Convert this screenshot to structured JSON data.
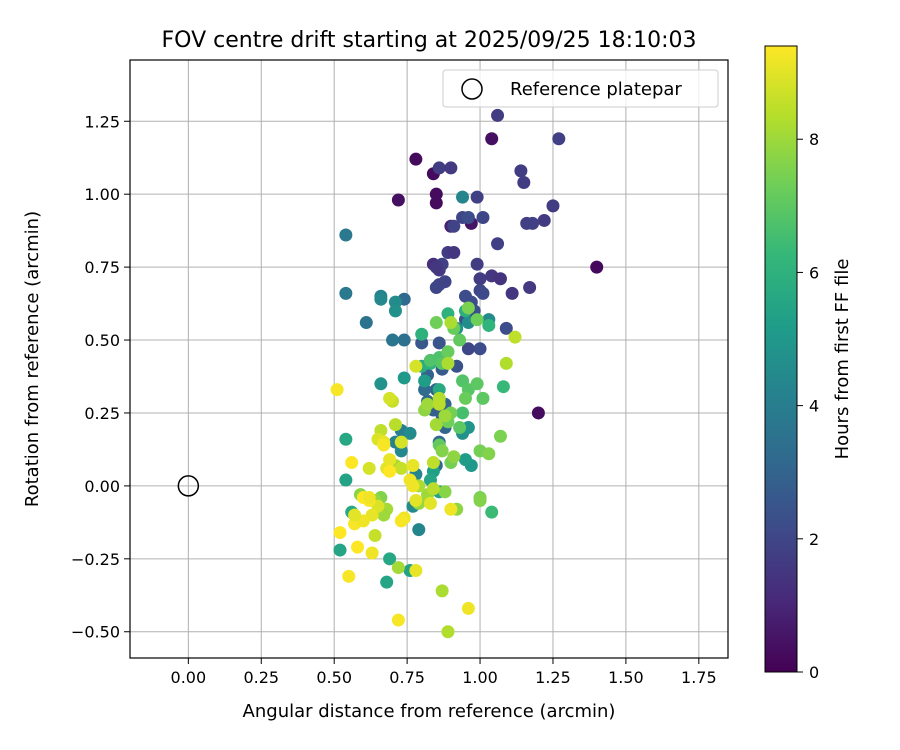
{
  "chart_data": {
    "type": "scatter",
    "title": "FOV centre drift starting at 2025/09/25 18:10:03",
    "xlabel": "Angular distance from reference (arcmin)",
    "ylabel": "Rotation from reference (arcmin)",
    "xlim": [
      -0.2,
      1.85
    ],
    "ylim": [
      -0.59,
      1.46
    ],
    "xticks": [
      0.0,
      0.25,
      0.5,
      0.75,
      1.0,
      1.25,
      1.5,
      1.75
    ],
    "xtick_labels": [
      "0.00",
      "0.25",
      "0.50",
      "0.75",
      "1.00",
      "1.25",
      "1.50",
      "1.75"
    ],
    "yticks": [
      -0.5,
      -0.25,
      0.0,
      0.25,
      0.5,
      0.75,
      1.0,
      1.25
    ],
    "ytick_labels": [
      "−0.50",
      "−0.25",
      "0.00",
      "0.25",
      "0.50",
      "0.75",
      "1.00",
      "1.25"
    ],
    "grid": true,
    "legend": {
      "placement": "top-right",
      "entries": [
        "Reference platepar"
      ]
    },
    "reference_point": {
      "x": 0.0,
      "y": 0.0,
      "label": "Reference platepar"
    },
    "colorbar": {
      "label": "Hours from first FF file",
      "range": [
        0,
        9.4
      ],
      "ticks": [
        0,
        2,
        4,
        6,
        8
      ],
      "tick_labels": [
        "0",
        "2",
        "4",
        "6",
        "8"
      ],
      "colormap": "viridis"
    },
    "points": [
      [
        1.4,
        0.75,
        0.2
      ],
      [
        1.2,
        0.25,
        0.3
      ],
      [
        0.78,
        1.12,
        0.3
      ],
      [
        0.72,
        0.98,
        0.4
      ],
      [
        0.84,
        1.07,
        0.3
      ],
      [
        0.85,
        1.0,
        0.3
      ],
      [
        0.85,
        0.97,
        0.3
      ],
      [
        1.04,
        1.19,
        0.4
      ],
      [
        0.97,
        0.9,
        0.5
      ],
      [
        0.9,
        0.89,
        0.9
      ],
      [
        1.06,
        1.27,
        1.7
      ],
      [
        1.27,
        1.19,
        1.8
      ],
      [
        0.86,
        1.09,
        1.7
      ],
      [
        0.9,
        1.09,
        1.6
      ],
      [
        1.14,
        1.08,
        1.7
      ],
      [
        1.15,
        1.04,
        1.7
      ],
      [
        1.25,
        0.96,
        1.7
      ],
      [
        1.22,
        0.91,
        1.6
      ],
      [
        1.16,
        0.9,
        1.8
      ],
      [
        1.18,
        0.9,
        1.8
      ],
      [
        0.99,
        0.99,
        1.8
      ],
      [
        1.01,
        0.92,
        2.0
      ],
      [
        0.94,
        0.92,
        2.0
      ],
      [
        0.96,
        0.92,
        2.2
      ],
      [
        0.91,
        0.89,
        1.9
      ],
      [
        1.06,
        0.83,
        1.8
      ],
      [
        0.89,
        0.8,
        1.7
      ],
      [
        0.91,
        0.8,
        1.5
      ],
      [
        0.84,
        0.76,
        1.3
      ],
      [
        0.86,
        0.74,
        1.6
      ],
      [
        0.87,
        0.76,
        1.8
      ],
      [
        0.85,
        0.75,
        1.5
      ],
      [
        0.99,
        0.76,
        1.7
      ],
      [
        1.0,
        0.71,
        1.7
      ],
      [
        1.04,
        0.72,
        1.5
      ],
      [
        1.07,
        0.71,
        1.4
      ],
      [
        1.11,
        0.66,
        1.5
      ],
      [
        1.17,
        0.68,
        1.6
      ],
      [
        1.0,
        0.67,
        2.0
      ],
      [
        1.01,
        0.66,
        2.1
      ],
      [
        0.86,
        0.69,
        2.0
      ],
      [
        0.85,
        0.68,
        2.0
      ],
      [
        0.88,
        0.7,
        1.9
      ],
      [
        0.95,
        0.65,
        2.2
      ],
      [
        0.97,
        0.63,
        2.2
      ],
      [
        0.95,
        0.57,
        2.3
      ],
      [
        0.98,
        0.6,
        2.3
      ],
      [
        1.09,
        0.54,
        2.2
      ],
      [
        0.86,
        0.49,
        2.5
      ],
      [
        0.83,
        0.43,
        2.6
      ],
      [
        0.82,
        0.38,
        2.9
      ],
      [
        0.8,
        0.49,
        2.6
      ],
      [
        1.0,
        0.47,
        2.2
      ],
      [
        0.96,
        0.47,
        2.0
      ],
      [
        0.92,
        0.41,
        2.4
      ],
      [
        0.87,
        0.4,
        2.7
      ],
      [
        0.85,
        0.33,
        2.9
      ],
      [
        0.82,
        0.29,
        3.0
      ],
      [
        0.84,
        0.26,
        2.8
      ],
      [
        0.88,
        0.28,
        3.0
      ],
      [
        0.87,
        0.24,
        2.9
      ],
      [
        0.88,
        0.2,
        3.1
      ],
      [
        0.86,
        0.15,
        3.2
      ],
      [
        0.85,
        0.07,
        3.3
      ],
      [
        0.81,
        0.33,
        3.3
      ],
      [
        0.74,
        0.5,
        3.5
      ],
      [
        0.7,
        0.5,
        3.7
      ],
      [
        0.74,
        0.64,
        3.2
      ],
      [
        0.54,
        0.86,
        3.8
      ],
      [
        0.54,
        0.66,
        3.8
      ],
      [
        0.61,
        0.56,
        3.6
      ],
      [
        0.66,
        0.65,
        4.2
      ],
      [
        0.66,
        0.64,
        4.4
      ],
      [
        0.71,
        0.63,
        4.5
      ],
      [
        0.71,
        0.6,
        4.7
      ],
      [
        0.94,
        0.99,
        4.3
      ],
      [
        1.03,
        0.57,
        4.5
      ],
      [
        0.96,
        0.56,
        4.6
      ],
      [
        0.92,
        0.54,
        4.8
      ],
      [
        0.73,
        0.19,
        4.0
      ],
      [
        0.71,
        0.15,
        4.1
      ],
      [
        0.73,
        0.12,
        4.4
      ],
      [
        0.76,
        0.18,
        4.5
      ],
      [
        0.79,
        -0.15,
        4.3
      ],
      [
        0.77,
        -0.07,
        4.5
      ],
      [
        0.78,
        0.04,
        4.3
      ],
      [
        0.66,
        0.35,
        4.8
      ],
      [
        0.74,
        0.37,
        5.0
      ],
      [
        0.81,
        0.36,
        5.2
      ],
      [
        0.94,
        0.18,
        4.7
      ],
      [
        0.96,
        0.2,
        4.9
      ],
      [
        0.97,
        0.07,
        5.0
      ],
      [
        0.95,
        0.09,
        5.2
      ],
      [
        0.84,
        0.05,
        5.3
      ],
      [
        0.83,
        0.02,
        5.5
      ],
      [
        0.86,
        -0.02,
        5.4
      ],
      [
        0.76,
        -0.29,
        5.4
      ],
      [
        0.68,
        -0.33,
        5.5
      ],
      [
        0.69,
        -0.25,
        5.6
      ],
      [
        0.52,
        -0.22,
        5.5
      ],
      [
        0.54,
        0.02,
        5.4
      ],
      [
        0.54,
        0.16,
        5.6
      ],
      [
        0.56,
        -0.09,
        5.7
      ],
      [
        0.86,
        0.29,
        5.5
      ],
      [
        0.86,
        0.33,
        5.7
      ],
      [
        0.8,
        0.41,
        5.8
      ],
      [
        0.83,
        0.42,
        6.0
      ],
      [
        0.8,
        0.52,
        6.0
      ],
      [
        0.89,
        0.59,
        6.0
      ],
      [
        0.95,
        0.6,
        5.9
      ],
      [
        1.03,
        0.55,
        6.1
      ],
      [
        1.08,
        0.34,
        6.3
      ],
      [
        1.04,
        -0.09,
        6.4
      ],
      [
        0.94,
        0.25,
        6.6
      ],
      [
        0.94,
        0.36,
        6.8
      ],
      [
        0.96,
        0.33,
        6.9
      ],
      [
        0.99,
        0.35,
        7.0
      ],
      [
        1.01,
        0.3,
        7.0
      ],
      [
        0.95,
        0.3,
        7.2
      ],
      [
        0.93,
        0.2,
        7.0
      ],
      [
        0.83,
        0.43,
        6.8
      ],
      [
        0.86,
        0.44,
        6.7
      ],
      [
        0.87,
        0.42,
        6.9
      ],
      [
        0.89,
        0.46,
        7.2
      ],
      [
        0.85,
        0.56,
        7.3
      ],
      [
        0.91,
        0.54,
        7.2
      ],
      [
        0.93,
        0.5,
        7.1
      ],
      [
        0.99,
        0.57,
        7.3
      ],
      [
        0.96,
        0.61,
        7.5
      ],
      [
        0.89,
        0.22,
        7.3
      ],
      [
        0.9,
        0.25,
        7.4
      ],
      [
        0.86,
        0.14,
        7.1
      ],
      [
        0.9,
        0.08,
        7.4
      ],
      [
        0.87,
        0.12,
        7.6
      ],
      [
        0.91,
        0.1,
        7.8
      ],
      [
        0.88,
        -0.02,
        7.7
      ],
      [
        1.0,
        0.12,
        7.4
      ],
      [
        1.03,
        0.11,
        7.6
      ],
      [
        1.07,
        0.17,
        7.5
      ],
      [
        1.0,
        -0.04,
        7.5
      ],
      [
        1.0,
        -0.05,
        7.6
      ],
      [
        0.92,
        -0.08,
        7.8
      ],
      [
        0.66,
        -0.04,
        7.6
      ],
      [
        0.59,
        -0.03,
        7.7
      ],
      [
        0.64,
        -0.05,
        7.9
      ],
      [
        0.68,
        -0.08,
        8.1
      ],
      [
        0.67,
        -0.1,
        8.0
      ],
      [
        0.82,
        -0.03,
        8.0
      ],
      [
        0.79,
        0.0,
        8.2
      ],
      [
        0.79,
        -0.06,
        7.9
      ],
      [
        0.72,
        -0.28,
        8.1
      ],
      [
        0.89,
        -0.5,
        8.3
      ],
      [
        0.87,
        -0.36,
        8.2
      ],
      [
        0.81,
        0.26,
        7.8
      ],
      [
        0.85,
        0.21,
        8.1
      ],
      [
        0.82,
        0.28,
        8.0
      ],
      [
        0.88,
        0.24,
        8.0
      ],
      [
        0.89,
        0.42,
        8.2
      ],
      [
        0.9,
        0.56,
        8.2
      ],
      [
        0.86,
        0.3,
        8.3
      ],
      [
        0.86,
        0.28,
        8.4
      ],
      [
        0.84,
        0.08,
        8.5
      ],
      [
        0.84,
        -0.01,
        8.4
      ],
      [
        1.12,
        0.51,
        8.5
      ],
      [
        1.09,
        0.42,
        8.3
      ],
      [
        0.71,
        0.07,
        8.2
      ],
      [
        0.73,
        0.06,
        8.6
      ],
      [
        0.71,
        0.21,
        8.4
      ],
      [
        0.7,
        0.29,
        8.6
      ],
      [
        0.69,
        0.3,
        8.8
      ],
      [
        0.66,
        0.19,
        8.5
      ],
      [
        0.73,
        0.15,
        8.8
      ],
      [
        0.78,
        0.41,
        8.8
      ],
      [
        0.65,
        -0.07,
        8.9
      ],
      [
        0.64,
        -0.17,
        8.6
      ],
      [
        0.62,
        0.06,
        8.8
      ],
      [
        0.65,
        0.16,
        8.9
      ],
      [
        0.68,
        0.06,
        9.0
      ],
      [
        0.69,
        0.09,
        9.1
      ],
      [
        0.77,
        0.07,
        9.1
      ],
      [
        0.77,
        0.0,
        9.2
      ],
      [
        0.76,
        0.02,
        9.2
      ],
      [
        0.74,
        -0.11,
        9.2
      ],
      [
        0.73,
        -0.12,
        9.3
      ],
      [
        0.72,
        -0.46,
        9.3
      ],
      [
        0.78,
        -0.29,
        9.1
      ],
      [
        0.83,
        -0.06,
        9.0
      ],
      [
        0.9,
        -0.08,
        9.2
      ],
      [
        0.96,
        -0.42,
        9.2
      ],
      [
        0.67,
        0.15,
        9.1
      ],
      [
        0.67,
        0.14,
        9.3
      ],
      [
        0.69,
        0.05,
        9.4
      ],
      [
        0.63,
        -0.1,
        9.1
      ],
      [
        0.62,
        -0.05,
        9.3
      ],
      [
        0.6,
        -0.04,
        9.4
      ],
      [
        0.62,
        -0.04,
        9.2
      ],
      [
        0.57,
        -0.13,
        9.3
      ],
      [
        0.55,
        -0.31,
        9.3
      ],
      [
        0.58,
        -0.21,
        9.4
      ],
      [
        0.51,
        0.33,
        9.3
      ],
      [
        0.52,
        -0.16,
        9.4
      ],
      [
        0.56,
        0.08,
        9.4
      ],
      [
        0.63,
        -0.23,
        9.2
      ],
      [
        0.6,
        -0.12,
        9.2
      ],
      [
        0.57,
        -0.1,
        9.0
      ],
      [
        0.78,
        -0.05,
        9.0
      ]
    ]
  }
}
